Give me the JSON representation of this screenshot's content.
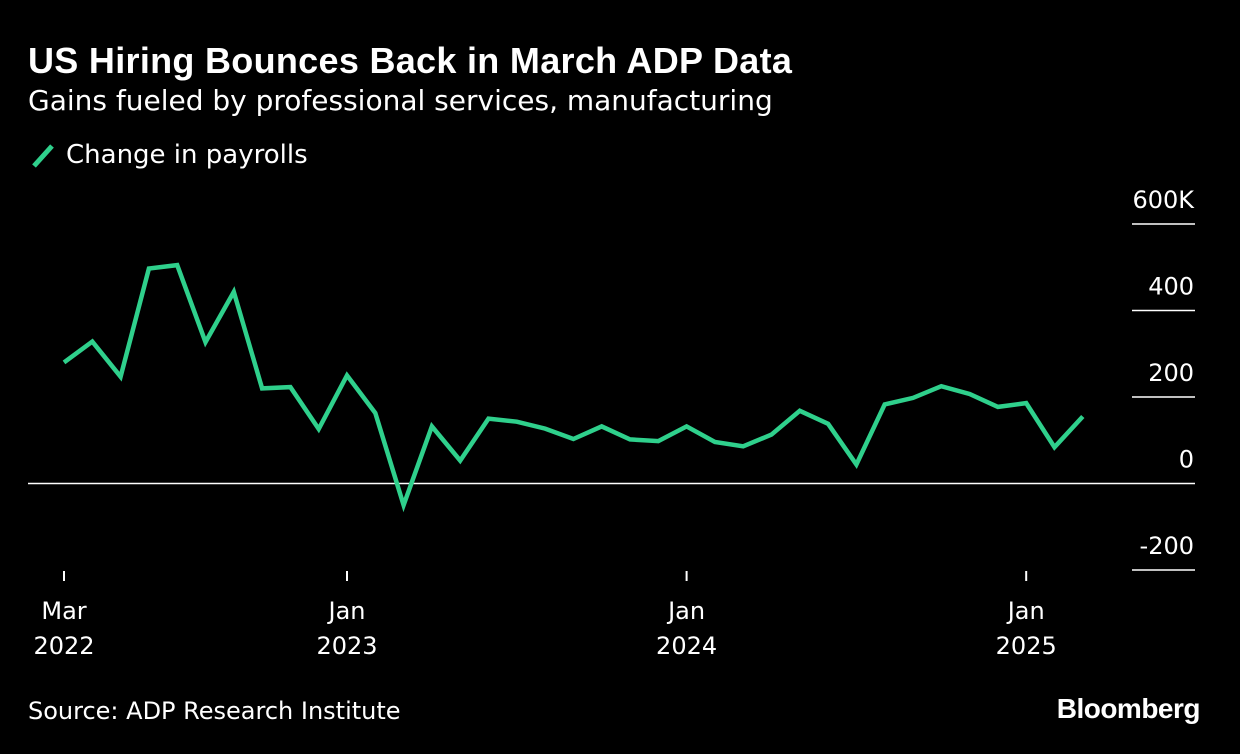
{
  "header": {
    "title": "US Hiring Bounces Back in March ADP Data",
    "subtitle": "Gains fueled by professional services, manufacturing"
  },
  "legend": {
    "label": "Change in payrolls"
  },
  "colors": {
    "background": "#000000",
    "line": "#2fd08c",
    "text": "#ffffff"
  },
  "footer": {
    "source": "Source: ADP Research Institute",
    "brand": "Bloomberg"
  },
  "chart_data": {
    "type": "line",
    "title": "US Hiring Bounces Back in March ADP Data",
    "subtitle": "Gains fueled by professional services, manufacturing",
    "xlabel": "",
    "ylabel": "",
    "ylim": [
      -200,
      600
    ],
    "y_ticks": [
      {
        "value": 600,
        "label": "600K"
      },
      {
        "value": 400,
        "label": "400"
      },
      {
        "value": 200,
        "label": "200"
      },
      {
        "value": 0,
        "label": "0"
      },
      {
        "value": -200,
        "label": "-200"
      }
    ],
    "x_ticks": [
      {
        "month": "Mar",
        "year": "2022",
        "index": 0
      },
      {
        "month": "Jan",
        "year": "2023",
        "index": 10
      },
      {
        "month": "Jan",
        "year": "2024",
        "index": 22
      },
      {
        "month": "Jan",
        "year": "2025",
        "index": 34
      }
    ],
    "legend_position": "top-left",
    "grid": false,
    "series": [
      {
        "name": "Change in payrolls",
        "x": [
          "2022-03",
          "2022-04",
          "2022-05",
          "2022-06",
          "2022-07",
          "2022-08",
          "2022-09",
          "2022-10",
          "2022-11",
          "2022-12",
          "2023-01",
          "2023-02",
          "2023-03",
          "2023-04",
          "2023-05",
          "2023-06",
          "2023-07",
          "2023-08",
          "2023-09",
          "2023-10",
          "2023-11",
          "2023-12",
          "2024-01",
          "2024-02",
          "2024-03",
          "2024-04",
          "2024-05",
          "2024-06",
          "2024-07",
          "2024-08",
          "2024-09",
          "2024-10",
          "2024-11",
          "2024-12",
          "2025-01",
          "2025-02",
          "2025-03"
        ],
        "values": [
          280,
          328,
          247,
          497,
          505,
          327,
          443,
          220,
          223,
          126,
          250,
          163,
          -50,
          132,
          53,
          150,
          143,
          127,
          103,
          132,
          102,
          98,
          132,
          96,
          86,
          113,
          168,
          138,
          44,
          183,
          198,
          225,
          207,
          177,
          186,
          84,
          155
        ]
      }
    ]
  }
}
